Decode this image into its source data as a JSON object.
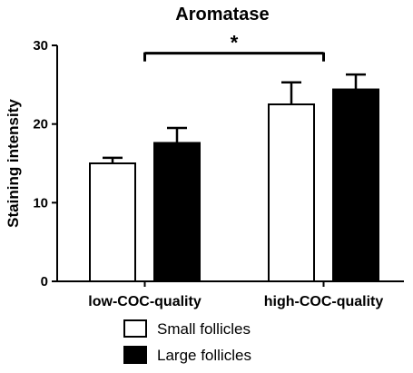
{
  "chart_data": {
    "type": "bar",
    "title": "Aromatase",
    "xlabel": "",
    "ylabel": "Staining intensity",
    "ylim": [
      0,
      30
    ],
    "yticks": [
      0,
      10,
      20,
      30
    ],
    "categories": [
      "low-COC-quality",
      "high-COC-quality"
    ],
    "series": [
      {
        "name": "Small follicles",
        "values": [
          15.0,
          22.5
        ],
        "errors": [
          0.7,
          2.8
        ],
        "fill": "#ffffff",
        "stroke": "#000000"
      },
      {
        "name": "Large follicles",
        "values": [
          17.6,
          24.4
        ],
        "errors": [
          1.9,
          1.9
        ],
        "fill": "#000000",
        "stroke": "#000000"
      }
    ],
    "annotations": [
      {
        "text": "*",
        "from_category": 0,
        "to_category": 1,
        "value": 29
      }
    ],
    "grid": false,
    "legend_position": "bottom"
  }
}
